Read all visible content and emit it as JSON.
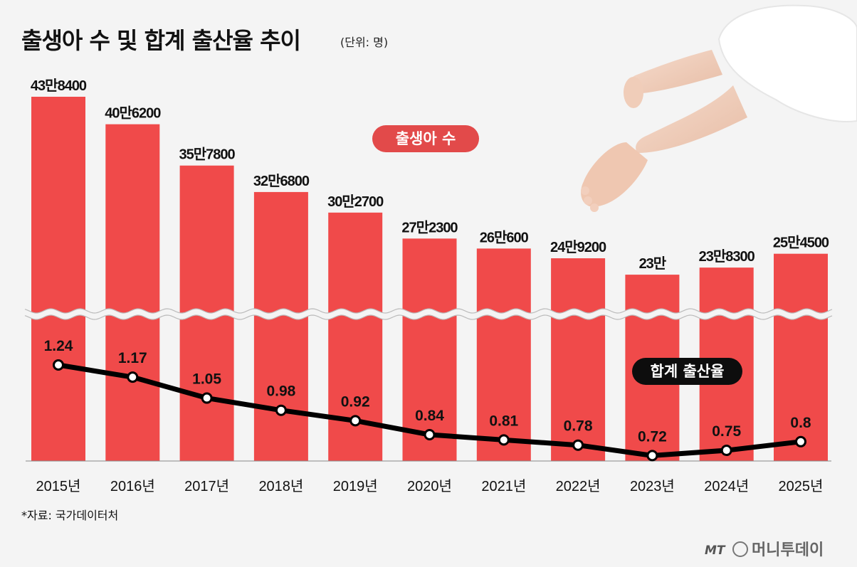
{
  "title": "출생아 수 및 합계 출산율 추이",
  "unit_note": "(단위: 명)",
  "births_label": "출생아 수",
  "tfr_label": "합계 출산율",
  "footnote": "*자료: 국가데이터처",
  "logo_text": "머니투데이",
  "logo_mark": "MT",
  "colors": {
    "bar": "#f04a4a",
    "line": "#000000",
    "background": "#f4f4f4"
  },
  "chart_data": {
    "type": "bar",
    "categories": [
      "2015년",
      "2016년",
      "2017년",
      "2018년",
      "2019년",
      "2020년",
      "2021년",
      "2022년",
      "2023년",
      "2024년",
      "2025년"
    ],
    "series": [
      {
        "name": "출생아 수",
        "type": "bar",
        "values": [
          438400,
          406200,
          357800,
          326800,
          302700,
          272300,
          260600,
          249200,
          230000,
          238300,
          254500
        ],
        "labels": [
          "43만8400",
          "40만6200",
          "35만7800",
          "32만6800",
          "30만2700",
          "27만2300",
          "26만600",
          "24만9200",
          "23만",
          "23만8300",
          "25만4500"
        ]
      },
      {
        "name": "합계 출산율",
        "type": "line",
        "values": [
          1.24,
          1.17,
          1.05,
          0.98,
          0.92,
          0.84,
          0.81,
          0.78,
          0.72,
          0.75,
          0.8
        ],
        "labels": [
          "1.24",
          "1.17",
          "1.05",
          "0.98",
          "0.92",
          "0.84",
          "0.81",
          "0.78",
          "0.72",
          "0.75",
          "0.8"
        ]
      }
    ],
    "axis_break": true,
    "grid": false,
    "legend": "inline"
  }
}
